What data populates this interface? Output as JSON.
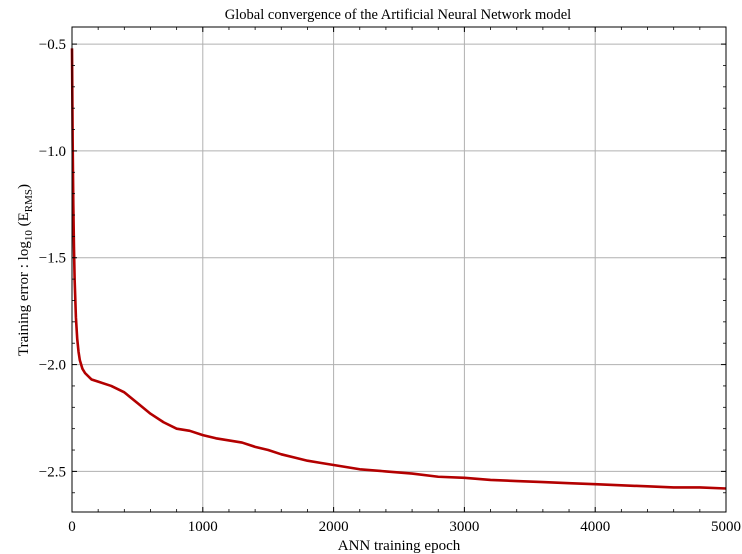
{
  "chart_data": {
    "type": "line",
    "title": "Global convergence of the Artificial Neural Network model",
    "xlabel": "ANN training epoch",
    "ylabel": "Training error : log₁₀ (E_RMS)",
    "ylabel_parts": {
      "main": "Training error : log",
      "sub1": "10",
      "paren_open": " (E",
      "sub2": "RMS",
      "paren_close": ")"
    },
    "xlim": [
      0,
      5000
    ],
    "ylim": [
      -2.69,
      -0.42
    ],
    "x_ticks": [
      0,
      1000,
      2000,
      3000,
      4000,
      5000
    ],
    "x_tick_labels": [
      "0",
      "1000",
      "2000",
      "3000",
      "4000",
      "5000"
    ],
    "y_ticks": [
      -0.5,
      -1.0,
      -1.5,
      -2.0,
      -2.5
    ],
    "y_tick_labels": [
      "−0.5",
      "−1.0",
      "−1.5",
      "−2.0",
      "−2.5"
    ],
    "grid": true,
    "series": [
      {
        "color": "#b30000",
        "x": [
          0,
          5,
          10,
          15,
          20,
          30,
          40,
          50,
          60,
          80,
          100,
          150,
          200,
          300,
          400,
          500,
          600,
          700,
          800,
          900,
          1000,
          1100,
          1200,
          1300,
          1400,
          1500,
          1600,
          1700,
          1800,
          1900,
          2000,
          2200,
          2400,
          2600,
          2800,
          3000,
          3200,
          3400,
          3600,
          3800,
          4000,
          4200,
          4400,
          4600,
          4800,
          5000
        ],
        "y": [
          -0.52,
          -0.95,
          -1.25,
          -1.45,
          -1.6,
          -1.78,
          -1.88,
          -1.94,
          -1.98,
          -2.02,
          -2.04,
          -2.07,
          -2.08,
          -2.1,
          -2.13,
          -2.18,
          -2.23,
          -2.27,
          -2.3,
          -2.31,
          -2.33,
          -2.345,
          -2.355,
          -2.365,
          -2.385,
          -2.4,
          -2.42,
          -2.435,
          -2.45,
          -2.46,
          -2.47,
          -2.49,
          -2.5,
          -2.51,
          -2.525,
          -2.53,
          -2.54,
          -2.545,
          -2.55,
          -2.555,
          -2.56,
          -2.565,
          -2.57,
          -2.575,
          -2.575,
          -2.58
        ]
      }
    ]
  }
}
